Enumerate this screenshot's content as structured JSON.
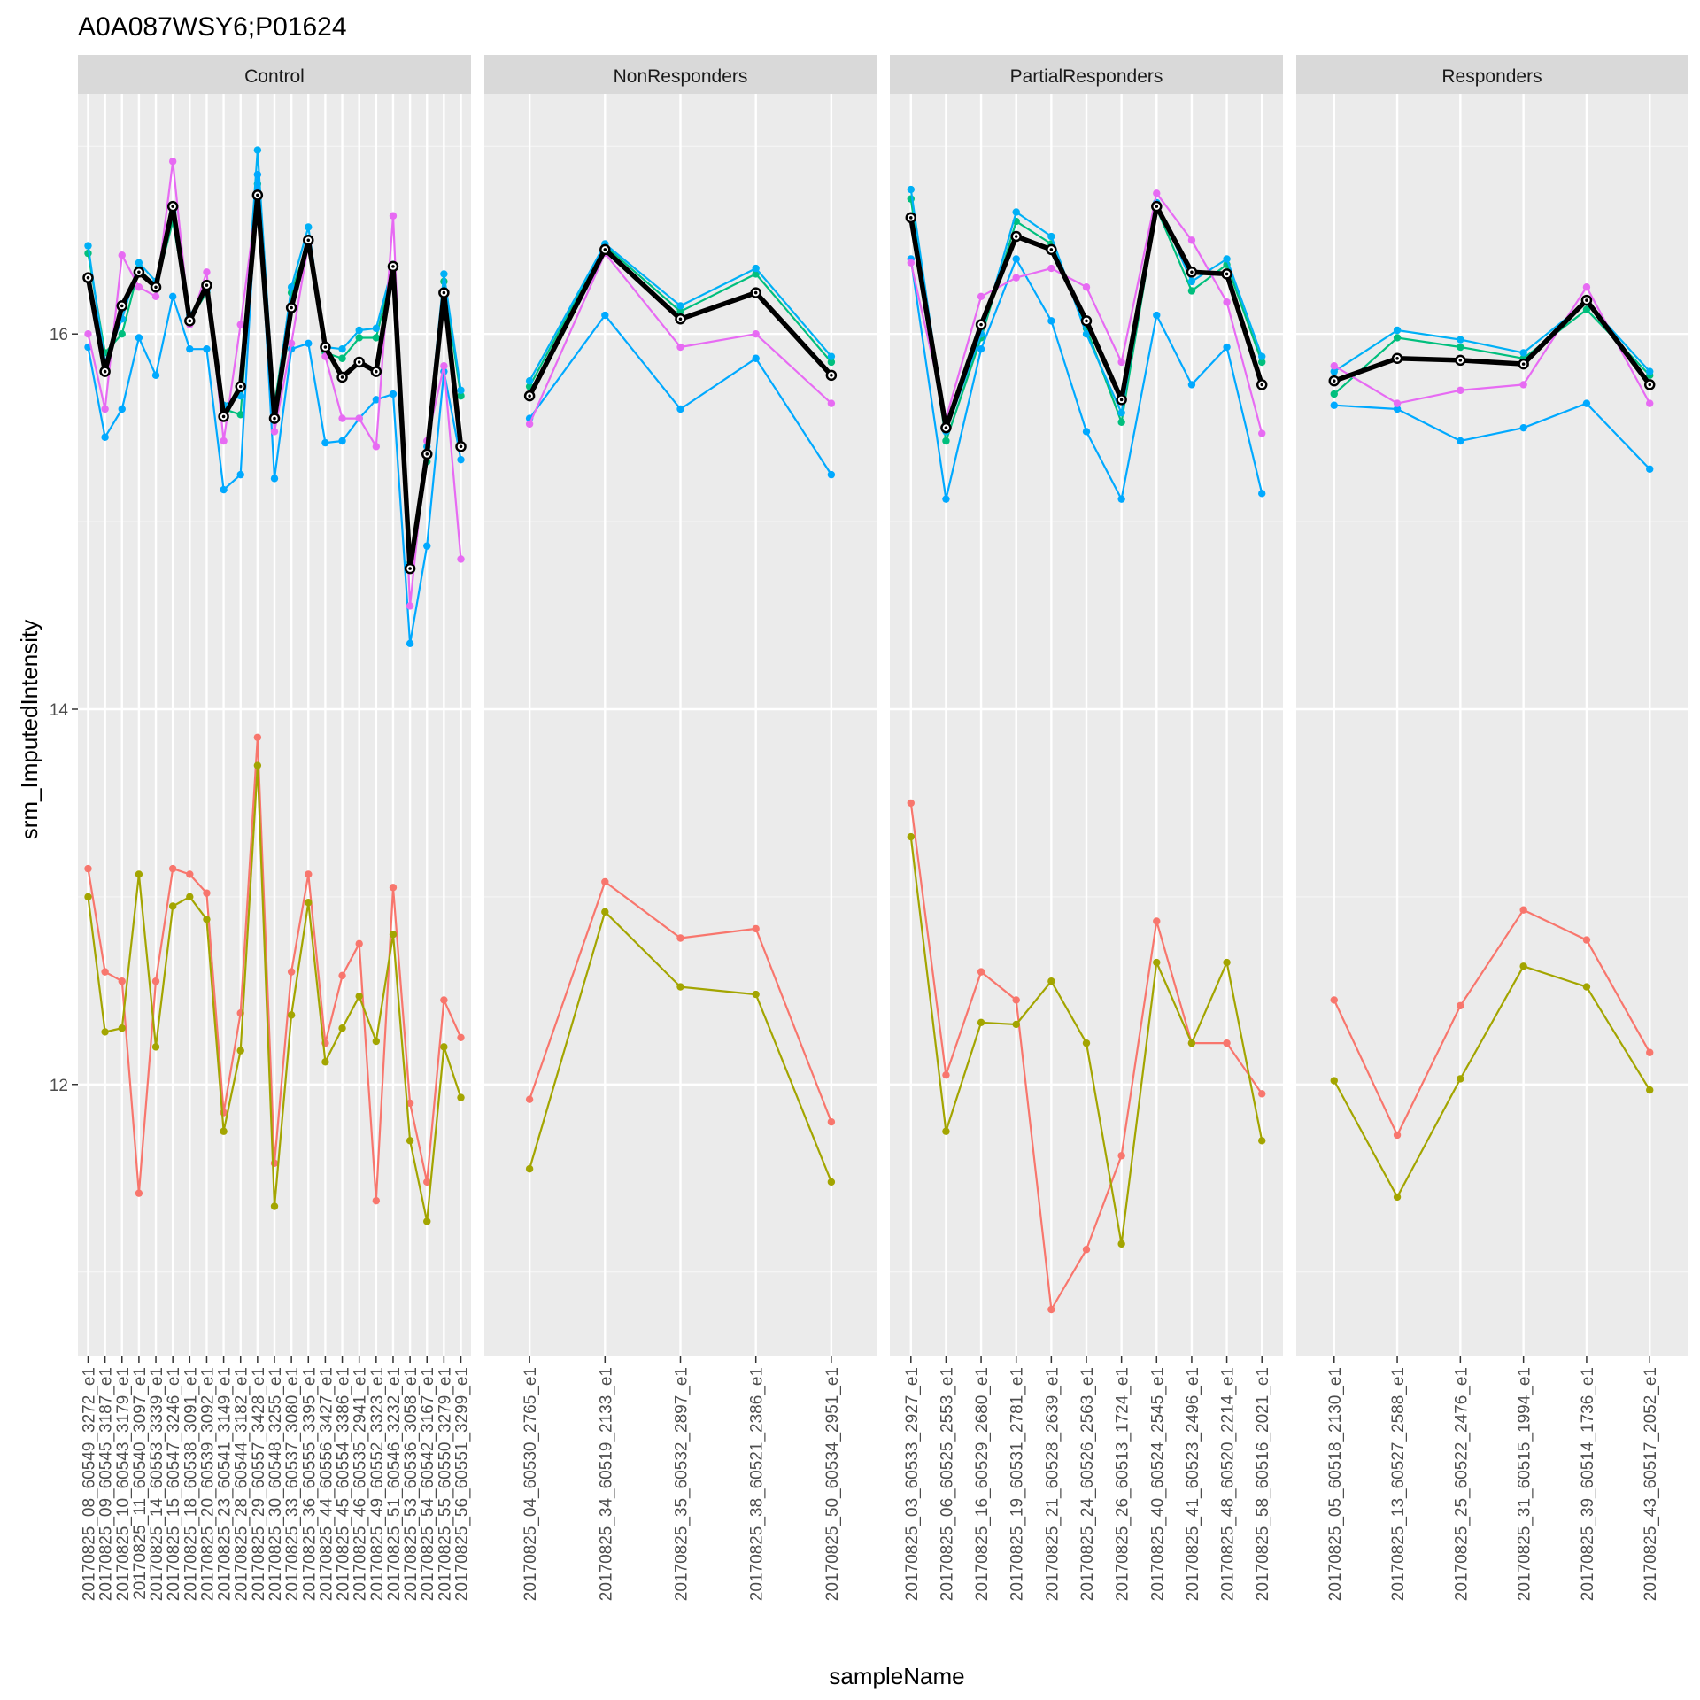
{
  "chart_data": {
    "type": "line",
    "title": "A0A087WSY6;P01624",
    "xlabel": "sampleName",
    "ylabel": "srm_ImputedIntensity",
    "ylim": [
      10.55,
      17.28
    ],
    "y_ticks": [
      12,
      14,
      16
    ],
    "grid": true,
    "legend": "none",
    "summary_series_color": "#000000",
    "panels": [
      {
        "name": "Control",
        "categories": [
          "20170825_08_60549_3272_e1",
          "20170825_09_60545_3187_e1",
          "20170825_10_60543_3179_e1",
          "20170825_11_60540_3097_e1",
          "20170825_14_60553_3339_e1",
          "20170825_15_60547_3246_e1",
          "20170825_18_60538_3091_e1",
          "20170825_20_60539_3092_e1",
          "20170825_23_60541_3149_e1",
          "20170825_28_60544_3182_e1",
          "20170825_29_60557_3428_e1",
          "20170825_30_60548_3255_e1",
          "20170825_33_60537_3080_e1",
          "20170825_36_60555_3395_e1",
          "20170825_44_60556_3427_e1",
          "20170825_45_60554_3386_e1",
          "20170825_46_60535_2941_e1",
          "20170825_49_60552_3323_e1",
          "20170825_51_60546_3232_e1",
          "20170825_53_60536_3058_e1",
          "20170825_54_60542_3167_e1",
          "20170825_55_60550_3279_e1",
          "20170825_56_60551_3299_e1"
        ],
        "series": [
          {
            "color": "#F8766D",
            "values": [
              13.15,
              12.6,
              12.55,
              11.42,
              12.55,
              13.15,
              13.12,
              13.02,
              11.85,
              12.38,
              13.85,
              11.58,
              12.6,
              13.12,
              12.22,
              12.58,
              12.75,
              11.38,
              13.05,
              11.9,
              11.48,
              12.45,
              12.25
            ]
          },
          {
            "color": "#A3A500",
            "values": [
              13.0,
              12.28,
              12.3,
              13.12,
              12.2,
              12.95,
              13.0,
              12.88,
              11.75,
              12.18,
              13.7,
              11.35,
              12.37,
              12.97,
              12.12,
              12.3,
              12.47,
              12.23,
              12.8,
              11.7,
              11.27,
              12.2,
              11.93
            ]
          },
          {
            "color": "#00BF7D",
            "values": [
              16.43,
              15.9,
              16.0,
              16.35,
              16.25,
              16.6,
              16.08,
              16.22,
              15.6,
              15.57,
              16.8,
              15.62,
              16.22,
              16.5,
              15.9,
              15.87,
              15.98,
              15.98,
              16.35,
              14.78,
              15.32,
              16.28,
              15.67
            ]
          },
          {
            "color": "#00B0F6",
            "values": [
              16.47,
              15.85,
              16.08,
              16.38,
              16.28,
              16.65,
              16.1,
              16.23,
              15.62,
              15.67,
              16.98,
              15.58,
              16.25,
              16.57,
              15.93,
              15.92,
              16.02,
              16.03,
              16.37,
              14.77,
              15.4,
              16.32,
              15.7
            ]
          },
          {
            "color": "#00A9FF",
            "values": [
              15.93,
              15.45,
              15.6,
              15.98,
              15.78,
              16.2,
              15.92,
              15.92,
              15.17,
              15.25,
              16.85,
              15.23,
              15.92,
              15.95,
              15.42,
              15.43,
              15.55,
              15.65,
              15.68,
              14.35,
              14.87,
              15.8,
              15.33
            ]
          },
          {
            "color": "#E76BF3",
            "values": [
              16.0,
              15.6,
              16.42,
              16.25,
              16.2,
              16.92,
              16.05,
              16.33,
              15.43,
              16.05,
              16.75,
              15.48,
              15.95,
              16.48,
              15.88,
              15.55,
              15.55,
              15.4,
              16.63,
              14.55,
              15.43,
              15.83,
              14.8
            ]
          },
          {
            "color": "#000000",
            "summary": true,
            "values": [
              16.3,
              15.8,
              16.15,
              16.33,
              16.25,
              16.68,
              16.07,
              16.26,
              15.56,
              15.72,
              16.74,
              15.55,
              16.14,
              16.5,
              15.93,
              15.77,
              15.85,
              15.8,
              16.36,
              14.75,
              15.36,
              16.22,
              15.4
            ]
          }
        ]
      },
      {
        "name": "NonResponders",
        "categories": [
          "20170825_04_60530_2765_e1",
          "20170825_34_60519_2133_e1",
          "20170825_35_60532_2897_e1",
          "20170825_38_60521_2386_e1",
          "20170825_50_60534_2951_e1"
        ],
        "series": [
          {
            "color": "#F8766D",
            "values": [
              11.92,
              13.08,
              12.78,
              12.83,
              11.8
            ]
          },
          {
            "color": "#A3A500",
            "values": [
              11.55,
              12.92,
              12.52,
              12.48,
              11.48
            ]
          },
          {
            "color": "#00BF7D",
            "values": [
              15.72,
              16.47,
              16.12,
              16.32,
              15.85
            ]
          },
          {
            "color": "#00B0F6",
            "values": [
              15.75,
              16.48,
              16.15,
              16.35,
              15.88
            ]
          },
          {
            "color": "#00A9FF",
            "values": [
              15.55,
              16.1,
              15.6,
              15.87,
              15.25
            ]
          },
          {
            "color": "#E76BF3",
            "values": [
              15.52,
              16.43,
              15.93,
              16.0,
              15.63
            ]
          },
          {
            "color": "#000000",
            "summary": true,
            "values": [
              15.67,
              16.45,
              16.08,
              16.22,
              15.78
            ]
          }
        ]
      },
      {
        "name": "PartialResponders",
        "categories": [
          "20170825_03_60533_2927_e1",
          "20170825_06_60525_2553_e1",
          "20170825_16_60529_2680_e1",
          "20170825_19_60531_2781_e1",
          "20170825_21_60528_2639_e1",
          "20170825_24_60526_2563_e1",
          "20170825_26_60513_1724_e1",
          "20170825_40_60524_2545_e1",
          "20170825_41_60523_2496_e1",
          "20170825_48_60520_2214_e1",
          "20170825_58_60516_2021_e1"
        ],
        "series": [
          {
            "color": "#F8766D",
            "values": [
              13.5,
              12.05,
              12.6,
              12.45,
              10.8,
              11.12,
              11.62,
              12.87,
              12.22,
              12.22,
              11.95
            ]
          },
          {
            "color": "#A3A500",
            "values": [
              13.32,
              11.75,
              12.33,
              12.32,
              12.55,
              12.22,
              11.15,
              12.65,
              12.22,
              12.65,
              11.7
            ]
          },
          {
            "color": "#00BF7D",
            "values": [
              16.72,
              15.43,
              15.98,
              16.6,
              16.48,
              16.03,
              15.53,
              16.67,
              16.23,
              16.37,
              15.85
            ]
          },
          {
            "color": "#00B0F6",
            "values": [
              16.77,
              15.48,
              16.0,
              16.65,
              16.52,
              16.0,
              15.58,
              16.7,
              16.28,
              16.4,
              15.88
            ]
          },
          {
            "color": "#00A9FF",
            "values": [
              16.4,
              15.12,
              15.92,
              16.4,
              16.07,
              15.48,
              15.12,
              16.1,
              15.73,
              15.93,
              15.15
            ]
          },
          {
            "color": "#E76BF3",
            "values": [
              16.38,
              15.55,
              16.2,
              16.3,
              16.35,
              16.25,
              15.85,
              16.75,
              16.5,
              16.17,
              15.47
            ]
          },
          {
            "color": "#000000",
            "summary": true,
            "values": [
              16.62,
              15.5,
              16.05,
              16.52,
              16.45,
              16.07,
              15.65,
              16.68,
              16.33,
              16.32,
              15.73
            ]
          }
        ]
      },
      {
        "name": "Responders",
        "categories": [
          "20170825_05_60518_2130_e1",
          "20170825_13_60527_2588_e1",
          "20170825_25_60522_2476_e1",
          "20170825_31_60515_1994_e1",
          "20170825_39_60514_1736_e1",
          "20170825_43_60517_2052_e1"
        ],
        "series": [
          {
            "color": "#F8766D",
            "values": [
              12.45,
              11.73,
              12.42,
              12.93,
              12.77,
              12.17
            ]
          },
          {
            "color": "#A3A500",
            "values": [
              12.02,
              11.4,
              12.03,
              12.63,
              12.52,
              11.97
            ]
          },
          {
            "color": "#00BF7D",
            "values": [
              15.68,
              15.98,
              15.93,
              15.87,
              16.13,
              15.78
            ]
          },
          {
            "color": "#00B0F6",
            "values": [
              15.8,
              16.02,
              15.97,
              15.9,
              16.17,
              15.8
            ]
          },
          {
            "color": "#00A9FF",
            "values": [
              15.62,
              15.6,
              15.43,
              15.5,
              15.63,
              15.28
            ]
          },
          {
            "color": "#E76BF3",
            "values": [
              15.83,
              15.63,
              15.7,
              15.73,
              16.25,
              15.63
            ]
          },
          {
            "color": "#000000",
            "summary": true,
            "values": [
              15.75,
              15.87,
              15.86,
              15.84,
              16.18,
              15.73
            ]
          }
        ]
      }
    ]
  }
}
